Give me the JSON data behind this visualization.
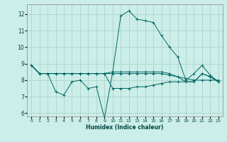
{
  "xlabel": "Humidex (Indice chaleur)",
  "xlim": [
    -0.5,
    23.5
  ],
  "ylim": [
    5.8,
    12.6
  ],
  "yticks": [
    6,
    7,
    8,
    9,
    10,
    11,
    12
  ],
  "xticks": [
    0,
    1,
    2,
    3,
    4,
    5,
    6,
    7,
    8,
    9,
    10,
    11,
    12,
    13,
    14,
    15,
    16,
    17,
    18,
    19,
    20,
    21,
    22,
    23
  ],
  "bg_color": "#cceee8",
  "grid_color": "#aad4cc",
  "line_color": "#006666",
  "series": [
    [
      8.9,
      8.4,
      8.4,
      7.3,
      7.1,
      7.9,
      8.0,
      7.5,
      7.6,
      5.7,
      8.5,
      11.9,
      12.2,
      11.7,
      11.6,
      11.5,
      10.7,
      10.0,
      9.4,
      8.0,
      8.4,
      8.9,
      8.3,
      7.9
    ],
    [
      8.9,
      8.4,
      8.4,
      8.4,
      8.4,
      8.4,
      8.4,
      8.4,
      8.4,
      8.4,
      8.4,
      8.4,
      8.4,
      8.4,
      8.4,
      8.4,
      8.4,
      8.3,
      8.2,
      8.1,
      8.0,
      8.0,
      8.0,
      8.0
    ],
    [
      8.9,
      8.4,
      8.4,
      8.4,
      8.4,
      8.4,
      8.4,
      8.4,
      8.4,
      8.4,
      8.5,
      8.5,
      8.5,
      8.5,
      8.5,
      8.5,
      8.5,
      8.4,
      8.2,
      7.9,
      7.9,
      8.4,
      8.2,
      7.9
    ],
    [
      8.9,
      8.4,
      8.4,
      8.4,
      8.4,
      8.4,
      8.4,
      8.4,
      8.4,
      8.4,
      7.5,
      7.5,
      7.5,
      7.6,
      7.6,
      7.7,
      7.8,
      7.9,
      7.9,
      7.9,
      7.9,
      8.4,
      8.2,
      7.9
    ]
  ]
}
